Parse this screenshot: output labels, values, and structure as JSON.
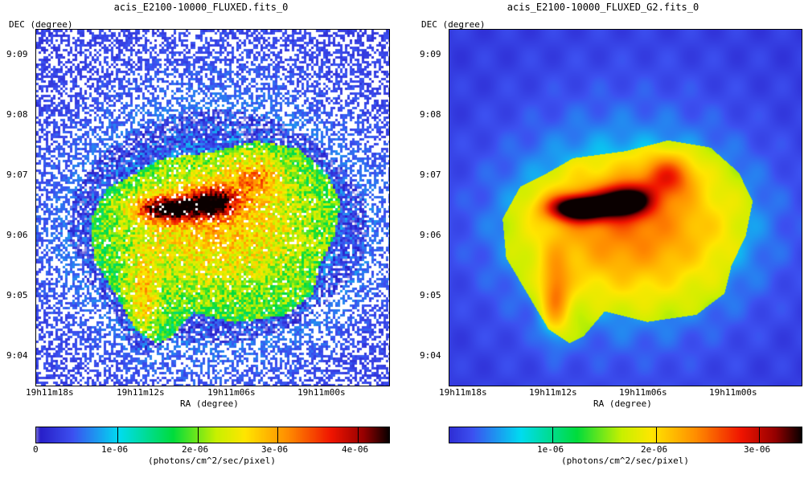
{
  "chart_data": [
    {
      "type": "heatmap",
      "title": "acis_E2100-10000_FLUXED.fits_0",
      "xlabel": "RA (degree)",
      "ylabel": "DEC (degree)",
      "x_ticks": [
        "19h11m18s",
        "19h11m12s",
        "19h11m06s",
        "19h11m00s"
      ],
      "y_ticks": [
        "9:09",
        "9:08",
        "9:07",
        "9:06",
        "9:05",
        "9:04"
      ],
      "colorbar": {
        "ticks": [
          "0",
          "1e-06",
          "2e-06",
          "3e-06",
          "4e-06"
        ],
        "tick_values": [
          0,
          1e-06,
          2e-06,
          3e-06,
          4e-06
        ],
        "range": [
          0,
          4.3e-06
        ],
        "label": "(photons/cm^2/sec/pixel)"
      },
      "colormap": "rainbow (blue → cyan → green → yellow → red → black)",
      "smoothing": "none (noisy binned pixels)"
    },
    {
      "type": "heatmap",
      "title": "acis_E2100-10000_FLUXED_G2.fits_0",
      "xlabel": "RA (degree)",
      "ylabel": "DEC (degree)",
      "x_ticks": [
        "19h11m18s",
        "19h11m12s",
        "19h11m06s",
        "19h11m00s"
      ],
      "y_ticks": [
        "9:09",
        "9:08",
        "9:07",
        "9:06",
        "9:05",
        "9:04"
      ],
      "colorbar": {
        "ticks": [
          "1e-06",
          "2e-06",
          "3e-06"
        ],
        "tick_values": [
          1e-06,
          2e-06,
          3e-06
        ],
        "range": [
          0,
          3.4e-06
        ],
        "label": "(photons/cm^2/sec/pixel)"
      },
      "colormap": "rainbow (blue → cyan → green → yellow → red → black)",
      "smoothing": "gaussian (G2)"
    }
  ]
}
